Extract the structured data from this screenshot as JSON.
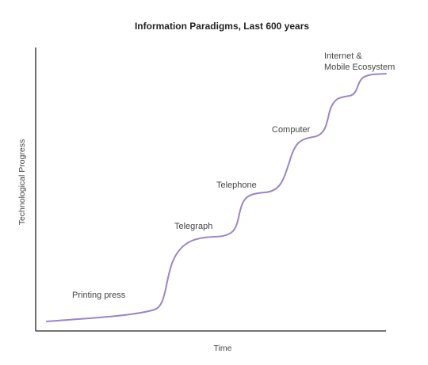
{
  "chart_data": {
    "type": "line",
    "title": "Information Paradigms, Last 600 years",
    "xlabel": "Time",
    "ylabel": "Technological Progress",
    "grid": false,
    "legend": "none",
    "line_color": "#9b85c9",
    "axis_color": "#222222",
    "annotations": [
      {
        "lines": [
          "Printing press"
        ]
      },
      {
        "lines": [
          "Telegraph"
        ]
      },
      {
        "lines": [
          "Telephone"
        ]
      },
      {
        "lines": [
          "Computer"
        ]
      },
      {
        "lines": [
          "Internet &",
          "Mobile Ecosystem"
        ]
      }
    ]
  }
}
